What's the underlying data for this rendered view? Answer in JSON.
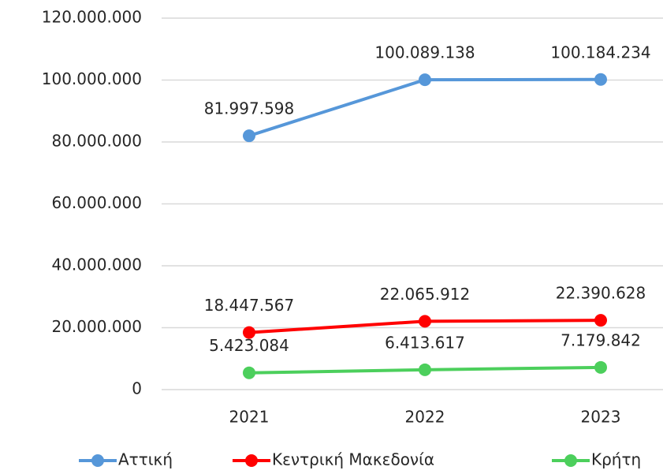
{
  "chart_data": {
    "type": "line",
    "categories": [
      "2021",
      "2022",
      "2023"
    ],
    "series": [
      {
        "name": "Αττική",
        "color": "#5697d9",
        "values": [
          81997598,
          100089138,
          100184234
        ],
        "value_labels": [
          "81.997.598",
          "100.089.138",
          "100.184.234"
        ]
      },
      {
        "name": "Κεντρική Μακεδονία",
        "color": "#ff0000",
        "values": [
          18447567,
          22065912,
          22390628
        ],
        "value_labels": [
          "18.447.567",
          "22.065.912",
          "22.390.628"
        ]
      },
      {
        "name": "Κρήτη",
        "color": "#4ccf5c",
        "values": [
          5423084,
          6413617,
          7179842
        ],
        "value_labels": [
          "5.423.084",
          "6.413.617",
          "7.179.842"
        ]
      }
    ],
    "ylim": [
      0,
      120000000
    ],
    "yticks": [
      0,
      {
        "value": 20000000,
        "label": "20.000.000"
      },
      {
        "value": 40000000,
        "label": "40.000.000"
      },
      {
        "value": 60000000,
        "label": "60.000.000"
      },
      {
        "value": 80000000,
        "label": "80.000.000"
      },
      {
        "value": 100000000,
        "label": "100.000.000"
      },
      {
        "value": 120000000,
        "label": "120.000.000"
      }
    ],
    "grid": true,
    "legend": "bottom"
  }
}
